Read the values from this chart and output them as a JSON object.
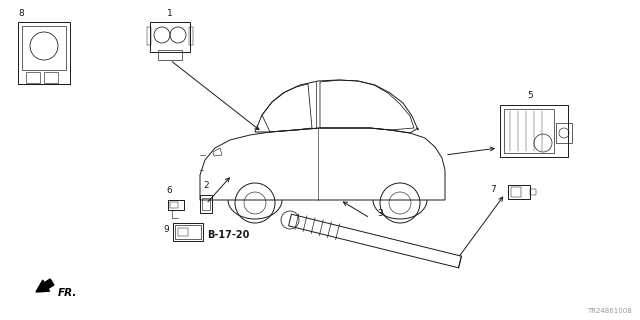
{
  "bg_color": "#ffffff",
  "label_b1720": "B-17-20",
  "part_code": "TR24861008",
  "fr_label": "FR.",
  "fig_size": [
    6.4,
    3.2
  ],
  "dpi": 100,
  "lw": 0.7,
  "color": "#1a1a1a"
}
